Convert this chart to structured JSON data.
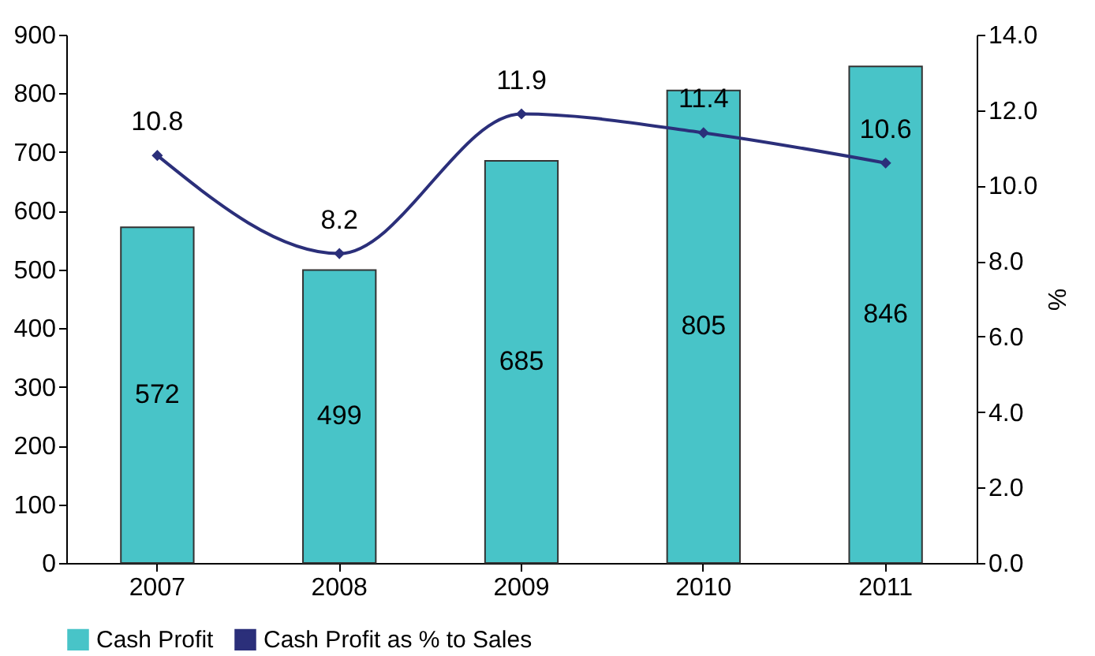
{
  "chart_data": {
    "type": "bar",
    "categories": [
      "2007",
      "2008",
      "2009",
      "2010",
      "2011"
    ],
    "series": [
      {
        "name": "Cash Profit",
        "color": "#48c4c8",
        "values": [
          572,
          499,
          685,
          805,
          846
        ]
      },
      {
        "name": "Cash Profit as % to Sales",
        "type": "line",
        "axis": "y2",
        "color": "#2b2f7a",
        "values": [
          10.8,
          8.2,
          11.9,
          11.4,
          10.6
        ]
      }
    ],
    "ylim": [
      0,
      900
    ],
    "yticks": [
      0,
      100,
      200,
      300,
      400,
      500,
      600,
      700,
      800,
      900
    ],
    "y2lim": [
      0,
      14
    ],
    "y2ticks": [
      {
        "value": 0,
        "label": "0.0"
      },
      {
        "value": 2,
        "label": "2.0"
      },
      {
        "value": 4,
        "label": "4.0"
      },
      {
        "value": 6,
        "label": "6.0"
      },
      {
        "value": 8,
        "label": "8.0"
      },
      {
        "value": 10,
        "label": "10.0"
      },
      {
        "value": 12,
        "label": "12.0"
      },
      {
        "value": 14,
        "label": "14.0"
      }
    ],
    "y2label": "%",
    "data_labels": true,
    "legend": "bottom",
    "grid": false,
    "marker": "diamond",
    "line_style": "solid"
  }
}
